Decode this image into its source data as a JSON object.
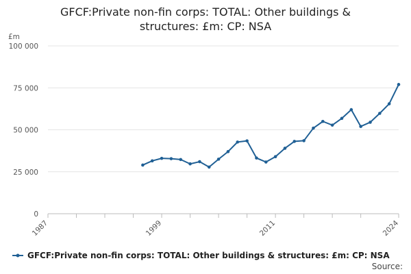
{
  "chart_data": {
    "type": "line",
    "title_lines": [
      "GFCF:Private non-fin corps: TOTAL: Other buildings &",
      "structures: £m: CP: NSA"
    ],
    "ylabel": "£m",
    "xlabel": "",
    "ylim": [
      0,
      100000
    ],
    "xlim": [
      1987,
      2024
    ],
    "y_ticks": [
      {
        "value": 0,
        "label": "0"
      },
      {
        "value": 25000,
        "label": "25 000"
      },
      {
        "value": 50000,
        "label": "50 000"
      },
      {
        "value": 75000,
        "label": "75 000"
      },
      {
        "value": 100000,
        "label": "100 000"
      }
    ],
    "x_tick_years": [
      1987,
      1990,
      1993,
      1996,
      1999,
      2002,
      2005,
      2008,
      2011,
      2014,
      2017,
      2020,
      2024
    ],
    "x_tick_labels": [
      {
        "year": 1987,
        "label": "1987"
      },
      {
        "year": 1999,
        "label": "1999"
      },
      {
        "year": 2011,
        "label": "2011"
      },
      {
        "year": 2024,
        "label": "2024"
      }
    ],
    "grid": true,
    "legend_position": "bottom",
    "colors": {
      "series": "#206095",
      "grid": "#e4e4e4",
      "axis": "#bbbbbb"
    },
    "series": [
      {
        "name": "GFCF:Private non-fin corps: TOTAL: Other buildings & structures: £m: CP: NSA",
        "x": [
          1997,
          1998,
          1999,
          2000,
          2001,
          2002,
          2003,
          2004,
          2005,
          2006,
          2007,
          2008,
          2009,
          2010,
          2011,
          2012,
          2013,
          2014,
          2015,
          2016,
          2017,
          2018,
          2019,
          2020,
          2021,
          2022,
          2023,
          2024
        ],
        "values": [
          29000,
          31500,
          33000,
          32800,
          32300,
          29700,
          31000,
          27800,
          32500,
          37000,
          42700,
          43400,
          33200,
          30800,
          34000,
          39000,
          43100,
          43500,
          51000,
          55000,
          52800,
          56800,
          62000,
          52000,
          54500,
          59800,
          65500,
          77000
        ]
      }
    ]
  },
  "legend": {
    "label": "GFCF:Private non-fin corps: TOTAL: Other buildings & structures: £m: CP: NSA"
  },
  "footer": {
    "source_label": "Source:"
  }
}
